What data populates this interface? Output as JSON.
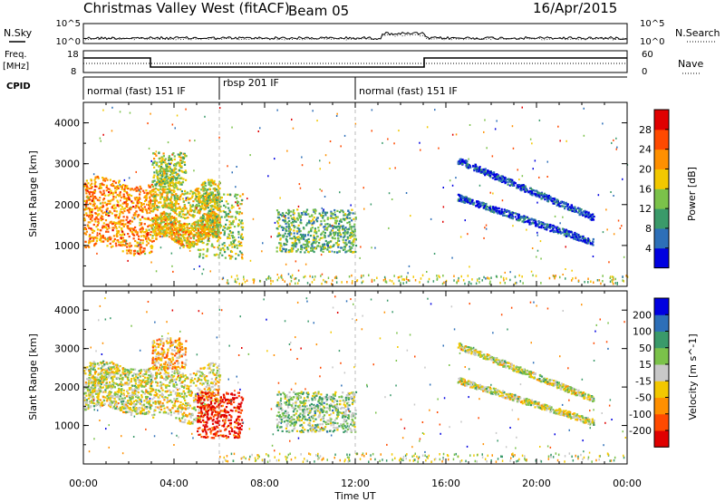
{
  "header": {
    "station": "Christmas Valley West (fitACF)",
    "beam": "Beam 05",
    "date": "16/Apr/2015"
  },
  "noise_panel": {
    "left_label": "N.Sky",
    "right_label": "N.Search",
    "left_ticks": [
      "10^5",
      "10^0"
    ],
    "right_ticks": [
      "10^5",
      "10^0"
    ]
  },
  "freq_panel": {
    "left_label_1": "Freq.",
    "left_label_2": "[MHz]",
    "right_label": "Nave",
    "left_ticks": [
      "18",
      "8"
    ],
    "right_ticks": [
      "60",
      "0"
    ]
  },
  "cpid": {
    "label": "CPID",
    "segments": [
      {
        "label": "normal (fast) 151 IF",
        "start_hour": 0,
        "end_hour": 6
      },
      {
        "label": "rbsp 201 IF",
        "start_hour": 6,
        "end_hour": 12
      },
      {
        "label": "normal (fast) 151 IF",
        "start_hour": 12,
        "end_hour": 24
      }
    ]
  },
  "chart_data": [
    {
      "type": "heatmap",
      "quantity": "Power",
      "ylabel": "Slant Range [km]",
      "ylim": [
        0,
        4500
      ],
      "yticks": [
        "1000",
        "2000",
        "3000",
        "4000"
      ],
      "xlim_hours": [
        0,
        24
      ],
      "colorbar_label": "Power [dB]",
      "colorbar_ticks": [
        "28",
        "24",
        "20",
        "16",
        "12",
        "8",
        "4"
      ],
      "colorscale": [
        "#0000e0",
        "#2d6fb8",
        "#3a9a6a",
        "#7bc24a",
        "#f2c800",
        "#ff9000",
        "#ff4a00",
        "#e00000"
      ],
      "scatter_regions": [
        {
          "t0": 0.0,
          "t1": 3.0,
          "r0": 900,
          "r1": 2600,
          "lvl": 0.72,
          "dens": 0.85,
          "curve": "slow"
        },
        {
          "t0": 3.0,
          "t1": 6.0,
          "r0": 1100,
          "r1": 1700,
          "lvl": 0.62,
          "dens": 0.8,
          "curve": "band"
        },
        {
          "t0": 3.0,
          "t1": 6.0,
          "r0": 1800,
          "r1": 2500,
          "lvl": 0.55,
          "dens": 0.6,
          "curve": "band"
        },
        {
          "t0": 3.0,
          "t1": 4.5,
          "r0": 2500,
          "r1": 3300,
          "lvl": 0.45,
          "dens": 0.55,
          "curve": "blob"
        },
        {
          "t0": 5.0,
          "t1": 7.0,
          "r0": 700,
          "r1": 2300,
          "lvl": 0.45,
          "dens": 0.5,
          "curve": "blob"
        },
        {
          "t0": 8.5,
          "t1": 12.0,
          "r0": 850,
          "r1": 1900,
          "lvl": 0.35,
          "dens": 0.55,
          "curve": "blob"
        },
        {
          "t0": 16.5,
          "t1": 22.5,
          "r0": 1100,
          "r1": 3100,
          "lvl": 0.08,
          "dens": 0.5,
          "curve": "arc"
        }
      ]
    },
    {
      "type": "heatmap",
      "quantity": "Velocity",
      "ylabel": "Slant Range [km]",
      "ylim": [
        0,
        4500
      ],
      "yticks": [
        "1000",
        "2000",
        "3000",
        "4000"
      ],
      "xlim_hours": [
        0,
        24
      ],
      "xticks": [
        "00:00",
        "04:00",
        "08:00",
        "12:00",
        "16:00",
        "20:00",
        "00:00"
      ],
      "xlabel": "Time UT",
      "colorbar_label": "Velocity [m s^-1]",
      "colorbar_ticks": [
        "200",
        "100",
        "50",
        "15",
        "-15",
        "-50",
        "-100",
        "-200"
      ],
      "colorscale": [
        "#e00000",
        "#ff4a00",
        "#ff9000",
        "#f2c800",
        "#c8c8c8",
        "#7bc24a",
        "#3a9a6a",
        "#2d6fb8",
        "#0000e0"
      ],
      "scatter_regions": [
        {
          "t0": 0.0,
          "t1": 3.0,
          "r0": 1400,
          "r1": 2600,
          "lvl": 0.5,
          "dens": 0.9,
          "curve": "slow"
        },
        {
          "t0": 3.0,
          "t1": 6.0,
          "r0": 1200,
          "r1": 2500,
          "lvl": 0.45,
          "dens": 0.6,
          "curve": "band"
        },
        {
          "t0": 3.0,
          "t1": 4.5,
          "r0": 2500,
          "r1": 3300,
          "lvl": 0.3,
          "dens": 0.45,
          "curve": "blob"
        },
        {
          "t0": 5.0,
          "t1": 7.0,
          "r0": 700,
          "r1": 1900,
          "lvl": 0.0,
          "dens": 0.6,
          "curve": "blob"
        },
        {
          "t0": 8.5,
          "t1": 12.0,
          "r0": 850,
          "r1": 1900,
          "lvl": 0.6,
          "dens": 0.55,
          "curve": "blob"
        },
        {
          "t0": 16.5,
          "t1": 22.5,
          "r0": 1100,
          "r1": 3100,
          "lvl": 0.5,
          "dens": 0.5,
          "curve": "arc"
        }
      ]
    }
  ]
}
